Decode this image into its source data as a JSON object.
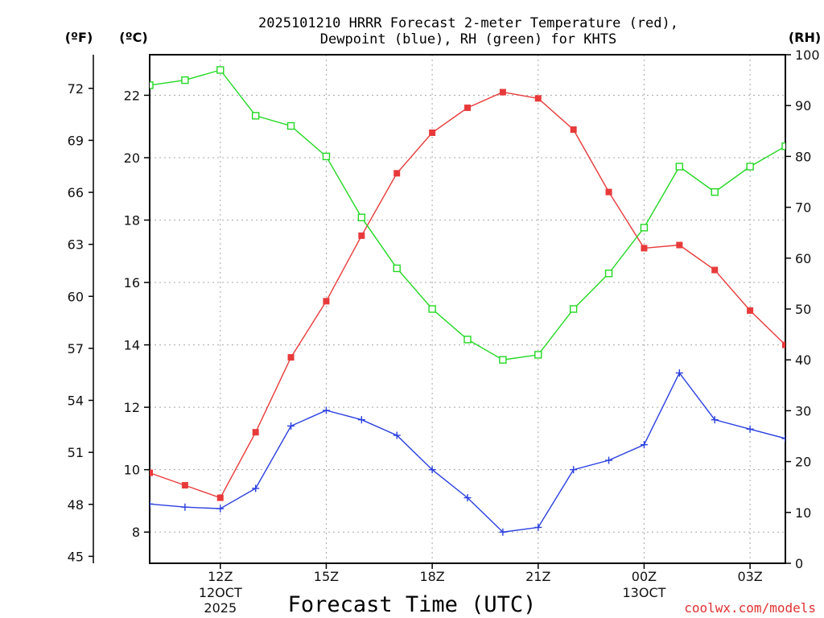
{
  "chart_data": {
    "type": "line",
    "title_line1": "2025101210 HRRR Forecast 2-meter Temperature (red),",
    "title_line2": "Dewpoint (blue), RH (green) for KHTS",
    "xlabel": "Forecast Time (UTC)",
    "credit": "coolwx.com/models",
    "units": {
      "fahrenheit": "(ºF)",
      "celsius": "(ºC)",
      "rh": "(RH)"
    },
    "x_hours": [
      0,
      1,
      2,
      3,
      4,
      5,
      6,
      7,
      8,
      9,
      10,
      11,
      12,
      13,
      14,
      15,
      16,
      17,
      18
    ],
    "x_range": [
      0,
      18
    ],
    "x_ticks": [
      {
        "hour": 2,
        "label": "12Z",
        "sub1": "12OCT",
        "sub2": "2025"
      },
      {
        "hour": 5,
        "label": "15Z",
        "sub1": "",
        "sub2": ""
      },
      {
        "hour": 8,
        "label": "18Z",
        "sub1": "",
        "sub2": ""
      },
      {
        "hour": 11,
        "label": "21Z",
        "sub1": "",
        "sub2": ""
      },
      {
        "hour": 14,
        "label": "00Z",
        "sub1": "13OCT",
        "sub2": ""
      },
      {
        "hour": 17,
        "label": "03Z",
        "sub1": "",
        "sub2": ""
      }
    ],
    "celsius_axis": {
      "range": [
        7.0,
        23.3
      ],
      "ticks": [
        "8",
        "10",
        "12",
        "14",
        "16",
        "18",
        "20",
        "22"
      ]
    },
    "fahrenheit_axis": {
      "ticks": [
        "45",
        "48",
        "51",
        "54",
        "57",
        "60",
        "63",
        "66",
        "69",
        "72"
      ]
    },
    "rh_axis": {
      "range": [
        0,
        100
      ],
      "ticks": [
        "0",
        "10",
        "20",
        "30",
        "40",
        "50",
        "60",
        "70",
        "80",
        "90",
        "100"
      ]
    },
    "colors": {
      "temperature": "#e83a3a",
      "dewpoint": "#2a3fe0",
      "rh": "#22d822"
    },
    "series": [
      {
        "name": "Temperature (red)",
        "unit": "C",
        "marker": "filled-square",
        "values": [
          9.9,
          9.5,
          9.1,
          11.2,
          13.6,
          15.4,
          17.5,
          19.5,
          20.8,
          21.6,
          22.1,
          21.9,
          20.9,
          18.9,
          17.1,
          17.2,
          16.4,
          15.1,
          14.0
        ]
      },
      {
        "name": "Dewpoint (blue)",
        "unit": "C",
        "marker": "plus",
        "values": [
          8.9,
          8.8,
          8.75,
          9.4,
          11.4,
          11.9,
          11.6,
          11.1,
          10.0,
          9.1,
          8.0,
          8.15,
          10.0,
          10.3,
          10.8,
          13.1,
          11.6,
          11.3,
          11.0
        ]
      },
      {
        "name": "RH (green)",
        "unit": "%",
        "marker": "open-square",
        "values": [
          94,
          95,
          97,
          88,
          86,
          80,
          68,
          58,
          50,
          44,
          40,
          41,
          50,
          57,
          66,
          78,
          73,
          78,
          82
        ]
      }
    ]
  }
}
